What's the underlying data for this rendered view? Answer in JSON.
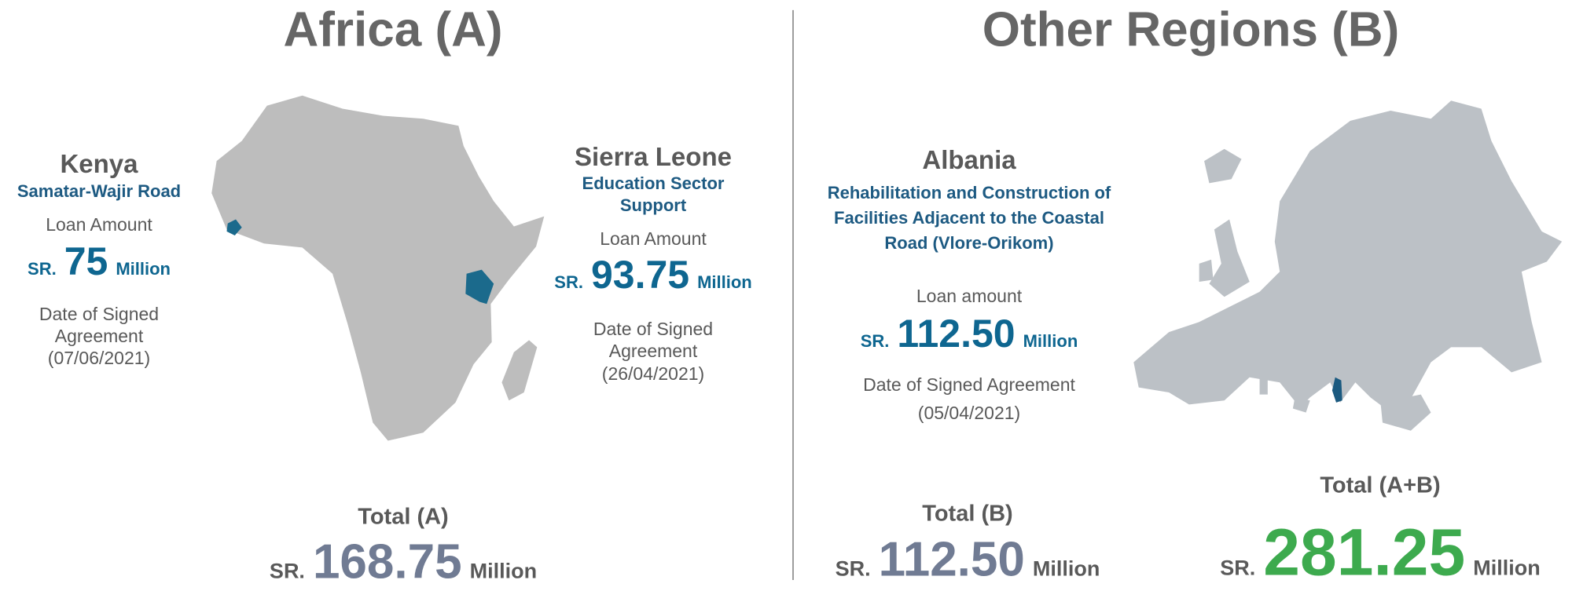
{
  "africa": {
    "title": "Africa (A)",
    "projects": [
      {
        "country": "Kenya",
        "project": "Samatar-Wajir Road",
        "loan_label": "Loan Amount",
        "currency": "SR.",
        "amount": "75",
        "unit": "Million",
        "date_label": "Date of Signed Agreement",
        "date": "(07/06/2021)"
      },
      {
        "country": "Sierra Leone",
        "project": "Education Sector Support",
        "loan_label": "Loan Amount",
        "currency": "SR.",
        "amount": "93.75",
        "unit": "Million",
        "date_label": "Date of Signed Agreement",
        "date": "(26/04/2021)"
      }
    ],
    "total": {
      "label": "Total (A)",
      "currency": "SR.",
      "amount": "168.75",
      "unit": "Million"
    }
  },
  "other_regions": {
    "title": "Other Regions (B)",
    "projects": [
      {
        "country": "Albania",
        "project": "Rehabilitation and Construction of Facilities Adjacent to the Coastal Road (Vlore-Orikom)",
        "loan_label": "Loan amount",
        "currency": "SR.",
        "amount": "112.50",
        "unit": "Million",
        "date_label": "Date of Signed Agreement",
        "date": "(05/04/2021)"
      }
    ],
    "total": {
      "label": "Total (B)",
      "currency": "SR.",
      "amount": "112.50",
      "unit": "Million"
    }
  },
  "grand_total": {
    "label": "Total (A+B)",
    "currency": "SR.",
    "amount": "281.25",
    "unit": "Million"
  }
}
